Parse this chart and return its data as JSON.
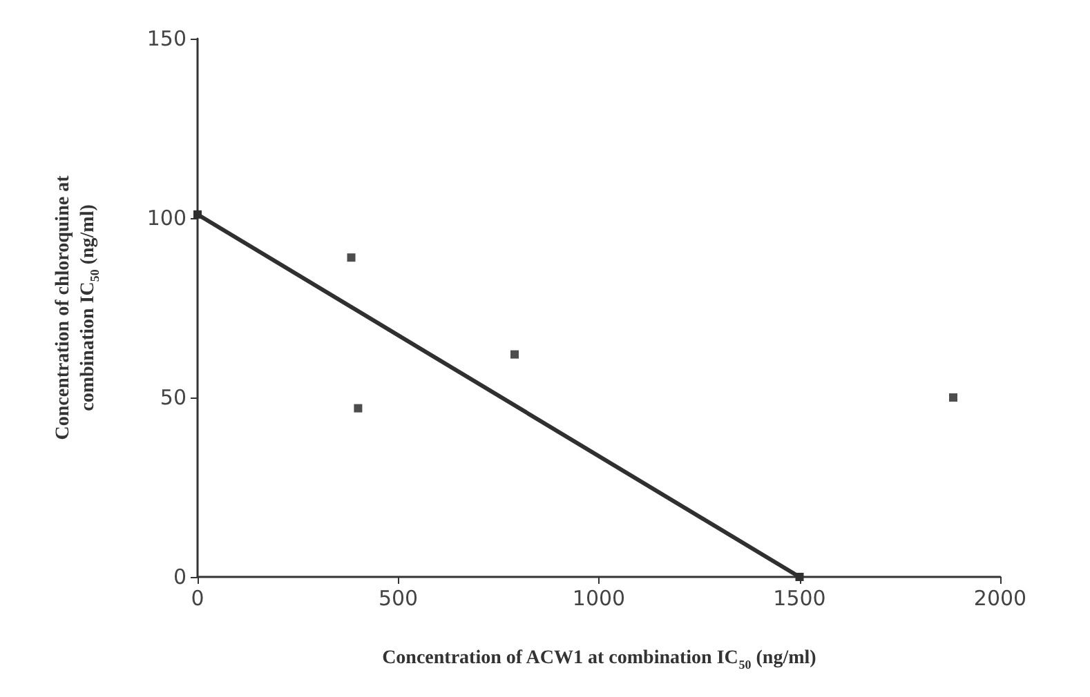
{
  "chart_data": {
    "type": "scatter",
    "xlabel": "Concentration of ACW1 at combination IC$_{50}$ (ng/ml)",
    "ylabel": "Concentration of chloroquine at\ncombination IC$_{50}$ (ng/ml)",
    "series": [
      {
        "type": "line",
        "color": "#303030",
        "x": [
          0,
          1500
        ],
        "values": [
          101,
          0
        ],
        "marker": "square"
      },
      {
        "color": "#202020",
        "x": [
          383,
          400,
          790,
          1883
        ],
        "values": [
          89,
          47,
          62,
          50
        ],
        "marker": "square"
      }
    ],
    "xlim": [
      0,
      2000
    ],
    "xticks": [
      0,
      500,
      1000,
      1500,
      2000
    ],
    "ylim": [
      0,
      150
    ],
    "yticks": [
      0,
      50,
      100,
      150
    ],
    "grid": false
  }
}
